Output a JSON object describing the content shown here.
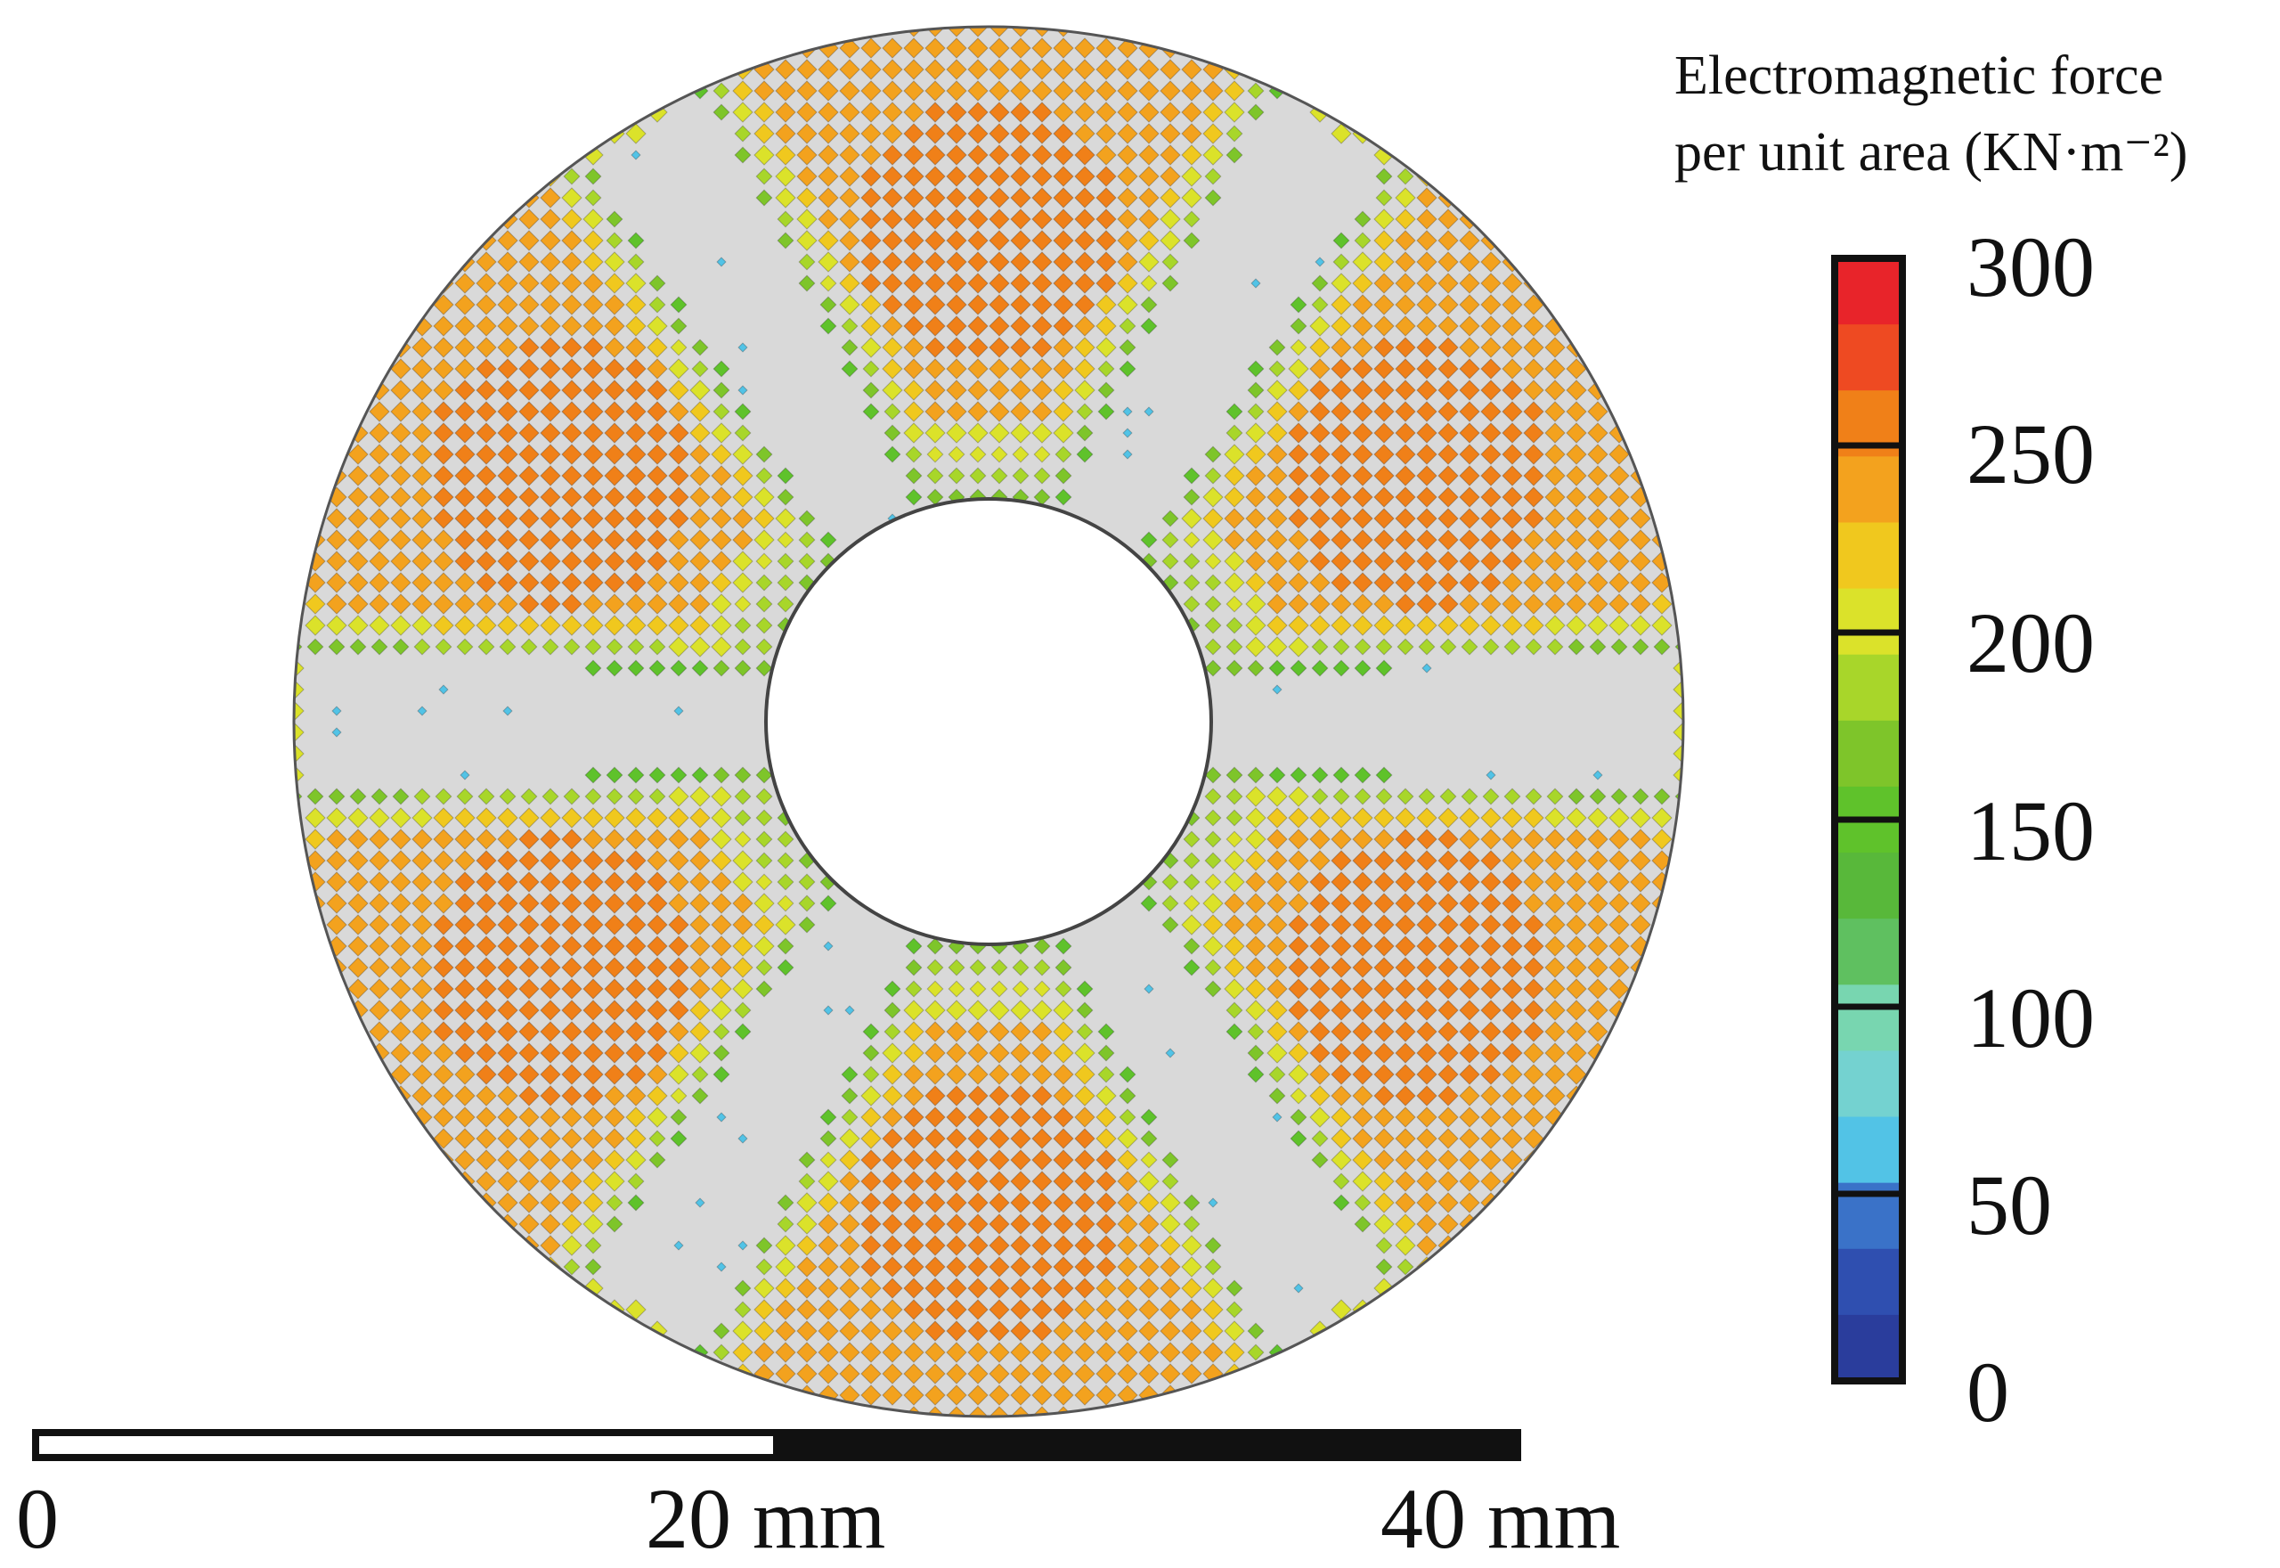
{
  "figure": {
    "plot_type": "annular disc electromagnetic force distribution map",
    "disc_fill_color": "#d9d9d9",
    "pole_count": 6
  },
  "legend": {
    "title_line1": "Electromagnetic force",
    "title_line2": "per unit area (KN·m⁻²)",
    "ticks": [
      "300",
      "250",
      "200",
      "150",
      "100",
      "50",
      "0"
    ],
    "range": [
      0,
      300
    ],
    "colors": [
      "#2a3d9c",
      "#2f4fb0",
      "#3a72c8",
      "#52c3e6",
      "#74d2d0",
      "#78d6b0",
      "#5fc060",
      "#58b83a",
      "#5fc22b",
      "#7ec52a",
      "#a8d62a",
      "#dbe22a",
      "#f0c81e",
      "#f3a21e",
      "#f08018",
      "#ee4a22",
      "#e8242a"
    ]
  },
  "scale_bar": {
    "labels": [
      "0",
      "20 mm",
      "40 mm"
    ]
  }
}
